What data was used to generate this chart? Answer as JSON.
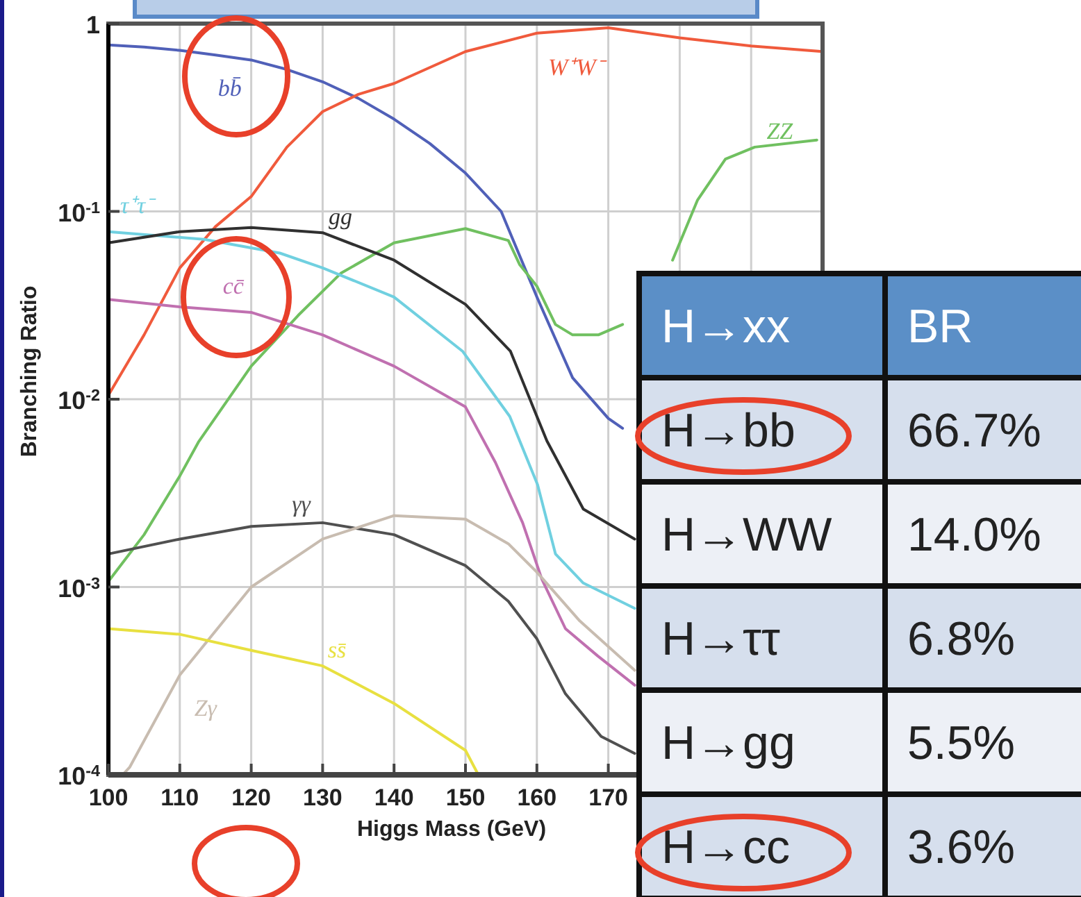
{
  "chart_data": [
    {
      "type": "line",
      "xlabel": "Higgs Mass (GeV)",
      "ylabel": "Branching Ratio",
      "log": "y",
      "grid": true,
      "legend": false,
      "xlim": [
        100,
        200
      ],
      "xticks": [
        100,
        110,
        120,
        130,
        140,
        150,
        160,
        170,
        {
          "value": 180,
          "label": null
        },
        {
          "value": 190,
          "label": null
        },
        {
          "value": 200,
          "label": null
        }
      ],
      "ylim": [
        0.0001,
        1
      ],
      "yticks": [
        {
          "value": 0.0001,
          "label": "10$^{-4}$"
        },
        {
          "value": 0.001,
          "label": "10$^{-3}$"
        },
        {
          "value": 0.01,
          "label": "10$^{-2}$"
        },
        {
          "value": 0.1,
          "label": "10$^{-1}$"
        },
        1
      ],
      "series": [
        {
          "name": "bb̄",
          "color": "#5060b8",
          "x": [
            100,
            105,
            110,
            115,
            120,
            125,
            130,
            135,
            140,
            145,
            150,
            155,
            160,
            165,
            170,
            172
          ],
          "values": [
            0.77,
            0.75,
            0.72,
            0.68,
            0.64,
            0.57,
            0.49,
            0.4,
            0.31,
            0.23,
            0.16,
            0.1,
            0.035,
            0.013,
            0.0079,
            0.007
          ]
        },
        {
          "name": "W⁺W⁻",
          "color": "#f05a3c",
          "x": [
            100,
            105,
            110,
            115,
            120,
            125,
            130,
            135,
            140,
            150,
            160,
            170,
            180,
            190,
            200
          ],
          "values": [
            0.0105,
            0.022,
            0.05,
            0.083,
            0.12,
            0.22,
            0.34,
            0.42,
            0.48,
            0.71,
            0.89,
            0.95,
            0.84,
            0.76,
            0.71
          ]
        },
        {
          "name": "ZZ",
          "color": "#70c060",
          "x": [
            100,
            105,
            110,
            112.6,
            120,
            126.6,
            132.6,
            140,
            150,
            156,
            157.6,
            160,
            162.6,
            165,
            168.6,
            172,
            176,
            179,
            182.5,
            186.4,
            190.5,
            199.2
          ],
          "values": [
            0.00107,
            0.0019,
            0.0039,
            0.0059,
            0.015,
            0.028,
            0.047,
            0.068,
            0.081,
            0.07,
            0.052,
            0.04,
            0.025,
            0.022,
            0.022,
            0.025,
            null,
            0.055,
            0.115,
            0.19,
            0.22,
            0.24
          ]
        },
        {
          "name": "τ⁺τ⁻",
          "color": "#70d0e0",
          "x": [
            100,
            113.4,
            124,
            130,
            140,
            149.6,
            156.2,
            160.1,
            162.6,
            166.5,
            173.7
          ],
          "values": [
            0.078,
            0.071,
            0.06,
            0.05,
            0.035,
            0.018,
            0.0081,
            0.0035,
            0.0015,
            0.00105,
            0.00077
          ]
        },
        {
          "name": "gg",
          "color": "#303030",
          "x": [
            100,
            110,
            120,
            130,
            140,
            150,
            156.3,
            160,
            161.4,
            166.5,
            173.7
          ],
          "values": [
            0.068,
            0.078,
            0.082,
            0.077,
            0.055,
            0.032,
            0.018,
            0.0081,
            0.006,
            0.0026,
            0.0018
          ]
        },
        {
          "name": "cc̄",
          "color": "#c070b0",
          "x": [
            100,
            110,
            120,
            130,
            140,
            150,
            154.2,
            158,
            160.7,
            164,
            168.5,
            173.7
          ],
          "values": [
            0.034,
            0.031,
            0.029,
            0.022,
            0.015,
            0.0091,
            0.0046,
            0.0022,
            0.0011,
            0.0006,
            0.00043,
            0.0003
          ]
        },
        {
          "name": "γγ",
          "color": "#505050",
          "x": [
            100,
            110,
            120,
            130,
            140,
            150,
            156,
            160,
            164,
            169,
            173.7
          ],
          "values": [
            0.0015,
            0.0018,
            0.0021,
            0.0022,
            0.0019,
            0.0013,
            0.00084,
            0.00053,
            0.00027,
            0.00016,
            0.00013
          ]
        },
        {
          "name": "Zγ",
          "color": "#c8bcb0",
          "x": [
            102,
            103,
            110,
            120,
            130,
            140,
            150,
            156,
            160,
            166,
            173.7
          ],
          "values": [
            0.0001,
            0.00011,
            0.00034,
            0.001,
            0.0018,
            0.0024,
            0.0023,
            0.0017,
            0.0012,
            0.00066,
            0.00036
          ]
        },
        {
          "name": "ss̄",
          "color": "#e8e040",
          "x": [
            100,
            110,
            120,
            130,
            140,
            150,
            151.8
          ],
          "values": [
            0.0006,
            0.00056,
            0.00046,
            0.00038,
            0.00024,
            0.000135,
            0.0001
          ]
        }
      ]
    },
    {
      "type": "other",
      "annotations": [
        "H→xx",
        "BR",
        "H→bb",
        "66.7%",
        "H→WW",
        "14.0%",
        "H→ττ",
        "6.8%",
        "H→gg",
        "5.5%",
        "H→cc",
        "3.6%"
      ]
    }
  ]
}
